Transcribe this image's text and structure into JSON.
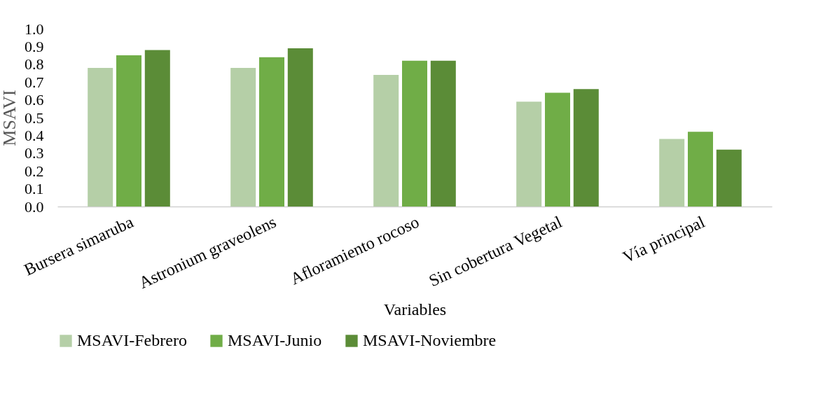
{
  "chart_data": {
    "type": "bar",
    "xlabel": "Variables",
    "ylabel": "MSAVI",
    "categories": [
      "Bursera simaruba",
      "Astronium graveolens",
      "Afloramiento rocoso",
      "Sin cobertura Vegetal",
      "Vía principal"
    ],
    "series": [
      {
        "name": "MSAVI-Febrero",
        "color": "#b5cfa7",
        "values": [
          0.78,
          0.78,
          0.74,
          0.59,
          0.38
        ]
      },
      {
        "name": "MSAVI-Junio",
        "color": "#70ad47",
        "values": [
          0.85,
          0.84,
          0.82,
          0.64,
          0.42
        ]
      },
      {
        "name": "MSAVI-Noviembre",
        "color": "#5b8c37",
        "values": [
          0.88,
          0.89,
          0.82,
          0.66,
          0.32
        ]
      }
    ],
    "ylim": [
      0,
      1
    ],
    "yticks": [
      {
        "value": 0,
        "label": "0.0"
      },
      0.1,
      0.2,
      0.3,
      0.4,
      0.5,
      0.6,
      0.7,
      0.8,
      0.9,
      {
        "value": 1,
        "label": "1.0"
      }
    ],
    "grid": false,
    "legend": "bottom"
  }
}
